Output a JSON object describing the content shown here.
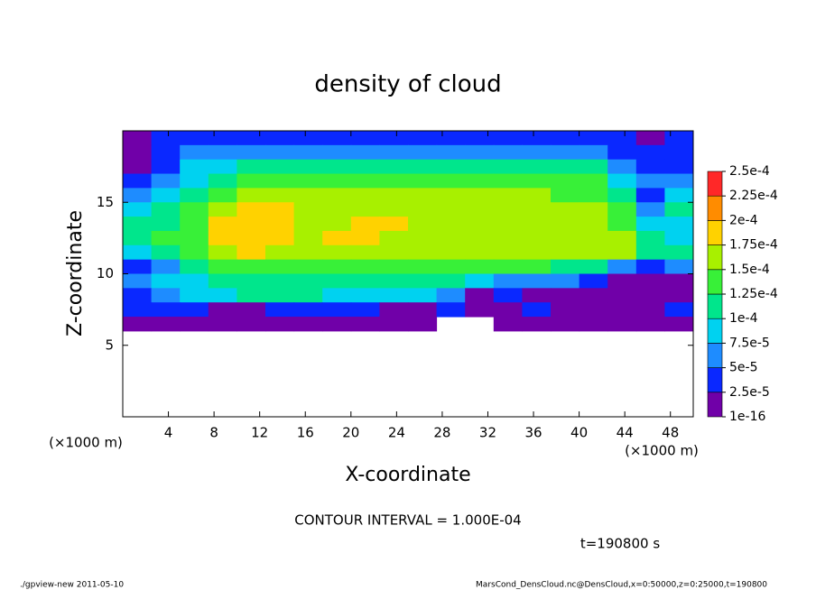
{
  "chart_data": {
    "type": "heatmap",
    "title": "density of cloud",
    "x_label": "X-coordinate",
    "y_label": "Z-coordinate",
    "x_unit": "(×1000 m)",
    "x_unit_right": "(×1000 m)",
    "contour_note": "CONTOUR INTERVAL = 1.000E-04",
    "time_note": "t=190800 s",
    "footer_left": "./gpview-new  2011-05-10",
    "footer_right": "MarsCond_DensCloud.nc@DensCloud,x=0:50000,z=0:25000,t=190800",
    "xlim": [
      0,
      50
    ],
    "ylim": [
      0,
      20
    ],
    "xticks": [
      4,
      8,
      12,
      16,
      20,
      24,
      28,
      32,
      36,
      40,
      44,
      48
    ],
    "yticks": [
      5,
      10,
      15
    ],
    "colorbar": {
      "ticks": [
        {
          "value": 1e-16,
          "label": "1e-16"
        },
        {
          "value": 2.5e-05,
          "label": "2.5e-5"
        },
        {
          "value": 5e-05,
          "label": "5e-5"
        },
        {
          "value": 7.5e-05,
          "label": "7.5e-5"
        },
        {
          "value": 0.0001,
          "label": "1e-4"
        },
        {
          "value": 0.000125,
          "label": "1.25e-4"
        },
        {
          "value": 0.00015,
          "label": "1.5e-4"
        },
        {
          "value": 0.000175,
          "label": "1.75e-4"
        },
        {
          "value": 0.0002,
          "label": "2e-4"
        },
        {
          "value": 0.000225,
          "label": "2.25e-4"
        },
        {
          "value": 0.00025,
          "label": "2.5e-4"
        }
      ],
      "colors": [
        "#7000a8",
        "#0a28ff",
        "#1e8cff",
        "#00d2f0",
        "#00e68c",
        "#38f038",
        "#a8f000",
        "#ffd200",
        "#ff8c00",
        "#ff2828"
      ]
    },
    "field": {
      "x": [
        1.25,
        3.75,
        6.25,
        8.75,
        11.25,
        13.75,
        16.25,
        18.75,
        21.25,
        23.75,
        26.25,
        28.75,
        31.25,
        33.75,
        36.25,
        38.75,
        41.25,
        43.75,
        46.25,
        48.75
      ],
      "y": [
        19.5,
        18.5,
        17.5,
        16.5,
        15.5,
        14.5,
        13.5,
        12.5,
        11.5,
        10.5,
        9.5,
        8.5,
        7.5,
        6.5
      ],
      "values": [
        [
          2e-05,
          3e-05,
          4e-05,
          4e-05,
          4e-05,
          4e-05,
          3e-05,
          3e-05,
          3e-05,
          3e-05,
          3e-05,
          3e-05,
          3e-05,
          3e-05,
          3e-05,
          3e-05,
          3e-05,
          3e-05,
          2e-05,
          3e-05
        ],
        [
          1e-05,
          3e-05,
          6e-05,
          6e-05,
          7e-05,
          7e-05,
          6e-05,
          6e-05,
          6e-05,
          6e-05,
          6e-05,
          6e-05,
          6e-05,
          6e-05,
          6e-05,
          6e-05,
          5e-05,
          3e-05,
          3e-05,
          4e-05
        ],
        [
          2e-05,
          4e-05,
          8e-05,
          9e-05,
          0.00011,
          0.00011,
          0.00011,
          0.00011,
          0.00012,
          0.00012,
          0.00012,
          0.00011,
          0.00011,
          0.00011,
          0.00011,
          0.00011,
          0.00011,
          6e-05,
          4e-05,
          3e-05
        ],
        [
          3e-05,
          6e-05,
          9e-05,
          0.00012,
          0.00013,
          0.00014,
          0.00014,
          0.00014,
          0.00014,
          0.00014,
          0.00014,
          0.00014,
          0.00014,
          0.00014,
          0.00013,
          0.00013,
          0.00013,
          9e-05,
          5e-05,
          6e-05
        ],
        [
          6e-05,
          8e-05,
          0.00011,
          0.00013,
          0.00015,
          0.00015,
          0.00015,
          0.00015,
          0.00015,
          0.00015,
          0.00015,
          0.00015,
          0.00015,
          0.00015,
          0.00015,
          0.00014,
          0.00014,
          0.00011,
          4e-05,
          8e-05
        ],
        [
          9e-05,
          0.00011,
          0.00013,
          0.00016,
          0.00019,
          0.00018,
          0.00016,
          0.00016,
          0.00016,
          0.00016,
          0.00016,
          0.00016,
          0.00016,
          0.00016,
          0.00016,
          0.00015,
          0.00015,
          0.00013,
          6e-05,
          0.0001
        ],
        [
          0.0001,
          0.00012,
          0.00014,
          0.00019,
          0.00019,
          0.00018,
          0.00016,
          0.00017,
          0.00019,
          0.00018,
          0.00017,
          0.00016,
          0.00016,
          0.00016,
          0.00016,
          0.00016,
          0.00016,
          0.00014,
          9e-05,
          8e-05
        ],
        [
          0.00011,
          0.00013,
          0.00014,
          0.00019,
          0.00019,
          0.00019,
          0.00017,
          0.00018,
          0.00018,
          0.00017,
          0.00016,
          0.00016,
          0.00017,
          0.00016,
          0.00017,
          0.00016,
          0.00017,
          0.00015,
          0.00011,
          9e-05
        ],
        [
          9e-05,
          0.00012,
          0.00014,
          0.00017,
          0.00018,
          0.00017,
          0.00016,
          0.00016,
          0.00016,
          0.00016,
          0.00016,
          0.00016,
          0.00016,
          0.00016,
          0.00016,
          0.00016,
          0.00016,
          0.00015,
          0.00012,
          0.0001
        ],
        [
          4e-05,
          7e-05,
          0.00011,
          0.00013,
          0.00014,
          0.00014,
          0.00014,
          0.00014,
          0.00014,
          0.00014,
          0.00014,
          0.00014,
          0.00014,
          0.00014,
          0.00013,
          0.00012,
          0.00011,
          6e-05,
          4e-05,
          5e-05
        ],
        [
          6e-05,
          8e-05,
          9e-05,
          0.00011,
          0.00012,
          0.00012,
          0.00012,
          0.00012,
          0.00012,
          0.00011,
          0.00011,
          0.0001,
          8e-05,
          7e-05,
          6e-05,
          5e-05,
          4e-05,
          1e-05,
          1e-05,
          1e-05
        ],
        [
          4e-05,
          6e-05,
          8e-05,
          9e-05,
          0.0001,
          0.0001,
          0.0001,
          9e-05,
          9e-05,
          9e-05,
          9e-05,
          6e-05,
          1e-05,
          4e-05,
          1e-05,
          1e-05,
          1e-05,
          1e-05,
          1e-05,
          1e-05
        ],
        [
          3e-05,
          4e-05,
          3e-05,
          2e-05,
          2e-05,
          3e-05,
          3e-05,
          3e-05,
          3e-05,
          2e-05,
          2e-05,
          4e-05,
          1e-05,
          1e-05,
          3e-05,
          1e-05,
          1e-05,
          2e-05,
          2e-05,
          3e-05
        ],
        [
          1e-05,
          2e-05,
          1e-05,
          1e-05,
          1e-05,
          1e-05,
          1e-05,
          1e-05,
          1e-05,
          1e-05,
          1e-05,
          null,
          null,
          1e-05,
          1e-05,
          1e-05,
          1e-05,
          1e-05,
          1e-05,
          1e-05
        ]
      ]
    }
  }
}
